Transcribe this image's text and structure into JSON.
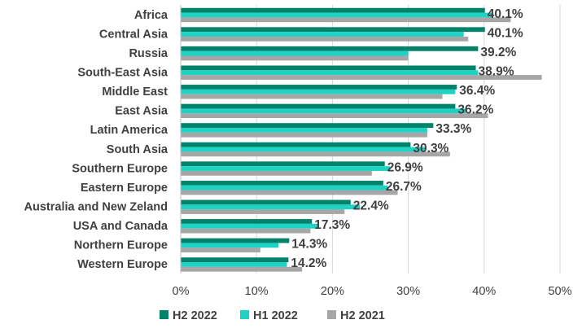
{
  "chart_data": {
    "type": "bar",
    "orientation": "horizontal",
    "categories": [
      "Africa",
      "Central Asia",
      "Russia",
      "South-East Asia",
      "Middle East",
      "East Asia",
      "Latin America",
      "South Asia",
      "Southern Europe",
      "Eastern Europe",
      "Australia and New Zeland",
      "USA and Canada",
      "Northern Europe",
      "Western Europe"
    ],
    "series": [
      {
        "name": "H2 2022",
        "color": "#00826B",
        "values": [
          40.1,
          40.1,
          39.2,
          38.9,
          36.4,
          36.2,
          33.3,
          30.3,
          26.9,
          26.7,
          22.4,
          17.3,
          14.3,
          14.2
        ]
      },
      {
        "name": "H1 2022",
        "color": "#1ED3C3",
        "values": [
          41.2,
          37.3,
          30.0,
          39.2,
          36.2,
          37.6,
          32.5,
          32.2,
          27.6,
          27.3,
          23.6,
          18.2,
          12.9,
          14.0
        ]
      },
      {
        "name": "H2 2021",
        "color": "#A6A6A6",
        "values": [
          43.5,
          37.9,
          30.0,
          47.6,
          34.5,
          40.5,
          32.5,
          35.5,
          25.2,
          28.6,
          21.6,
          17.1,
          10.5,
          16.0
        ]
      }
    ],
    "data_labels": [
      "40.1%",
      "40.1%",
      "39.2%",
      "38.9%",
      "36.4%",
      "36.2%",
      "33.3%",
      "30.3%",
      "26.9%",
      "26.7%",
      "22.4%",
      "17.3%",
      "14.3%",
      "14.2%"
    ],
    "xlim": [
      0,
      50
    ],
    "x_ticks": [
      0,
      10,
      20,
      30,
      40,
      50
    ],
    "x_tick_labels": [
      "0%",
      "10%",
      "20%",
      "30%",
      "40%",
      "50%"
    ],
    "grid": "vertical",
    "legend": "bottom",
    "title": "",
    "xlabel": "",
    "ylabel": ""
  }
}
